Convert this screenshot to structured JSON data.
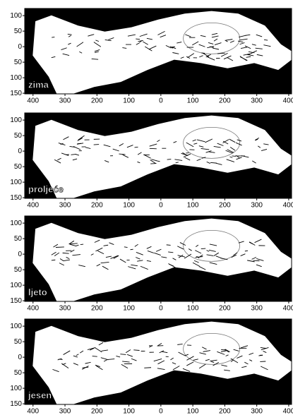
{
  "panels": [
    {
      "label": "zima"
    },
    {
      "label": "proljeće"
    },
    {
      "label": "ljeto"
    },
    {
      "label": "jesen"
    }
  ],
  "axes": {
    "xlim": [
      -426,
      409
    ],
    "ylim": [
      -152,
      123
    ],
    "xticks": [
      {
        "value": -400,
        "label": "400"
      },
      {
        "value": -300,
        "label": "300"
      },
      {
        "value": -200,
        "label": "200"
      },
      {
        "value": -100,
        "label": "100"
      },
      0,
      100,
      200,
      300,
      400
    ],
    "yticks": [
      100,
      50,
      0,
      {
        "value": -50,
        "label": "50"
      },
      {
        "value": -100,
        "label": "100"
      },
      {
        "value": -150,
        "label": "150"
      }
    ]
  }
}
